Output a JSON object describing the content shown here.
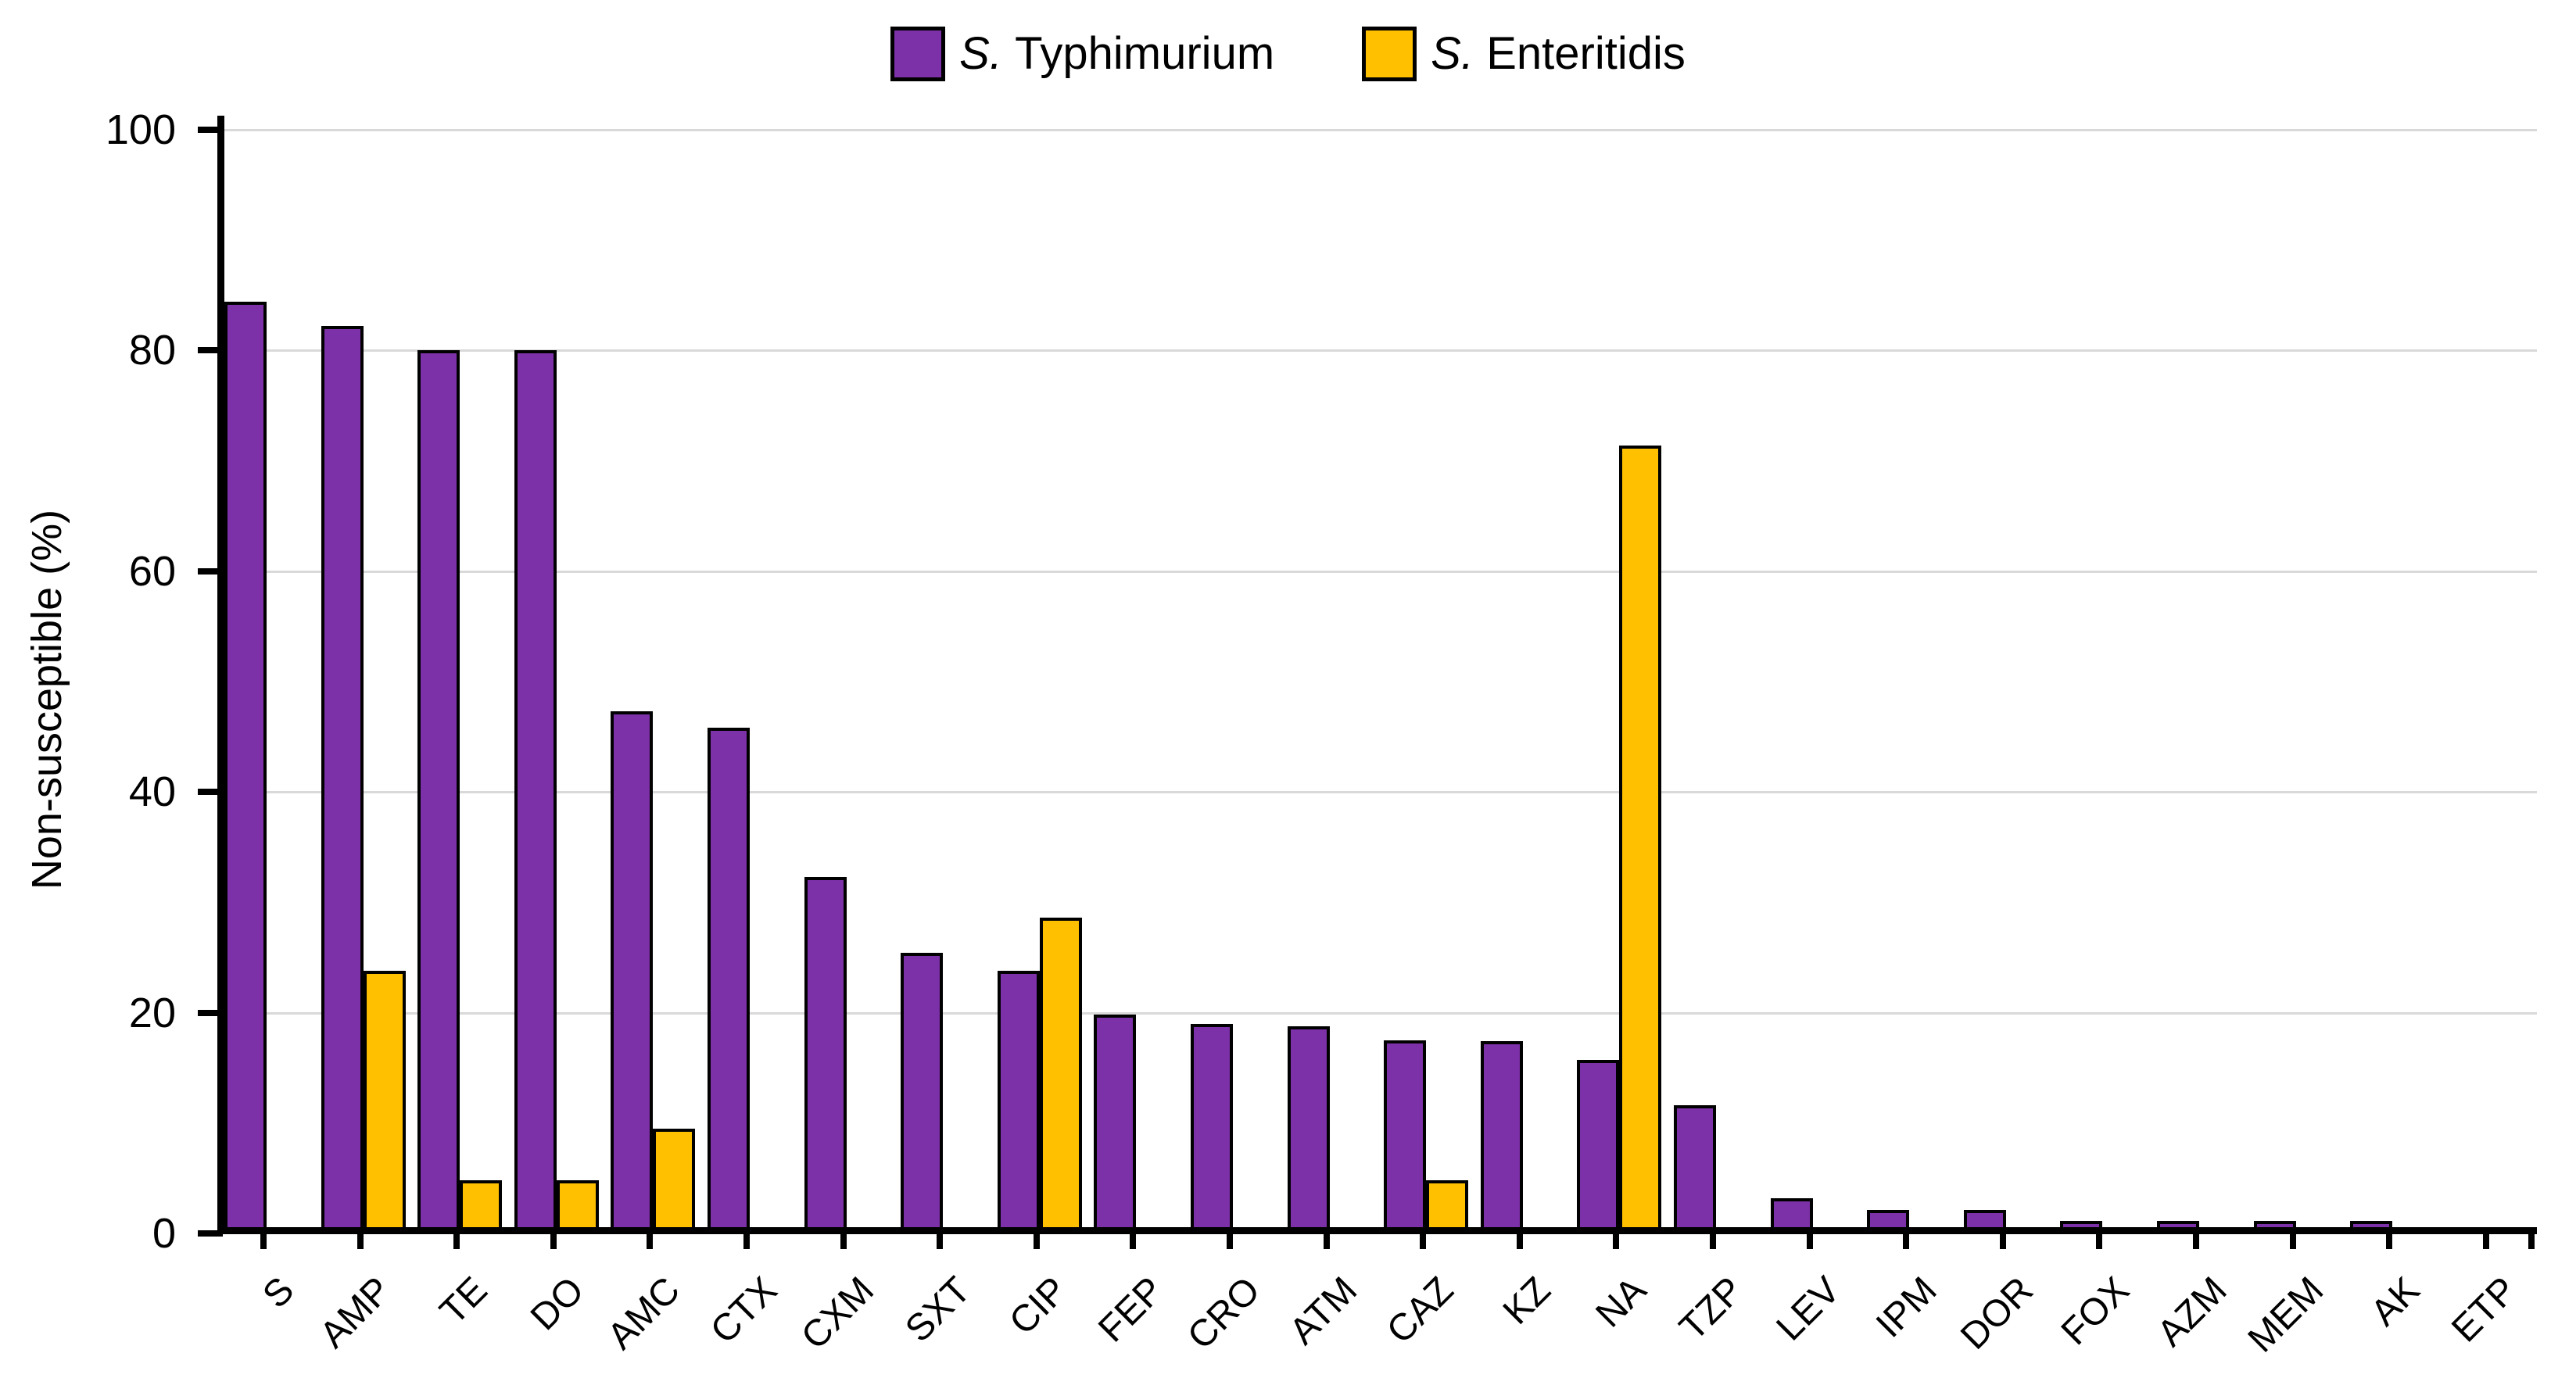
{
  "legend": {
    "items": [
      {
        "genus": "S.",
        "rest": "Typhimurium",
        "color": "#7D31A8"
      },
      {
        "genus": "S.",
        "rest": "Enteritidis",
        "color": "#FFC000"
      }
    ]
  },
  "y_axis_title": "Non-susceptible (%)",
  "chart_data": {
    "type": "bar",
    "title": "",
    "xlabel": "",
    "ylabel": "Non-susceptible (%)",
    "ylim": [
      0,
      100
    ],
    "yticks": [
      0,
      20,
      40,
      60,
      80,
      100
    ],
    "grid": "horizontal",
    "legend_position": "top-center",
    "gridline_color": "#D9D9D9",
    "bar_border_color": "#000000",
    "categories": [
      "S",
      "AMP",
      "TE",
      "DO",
      "AMC",
      "CTX",
      "CXM",
      "SXT",
      "CIP",
      "FEP",
      "CRO",
      "ATM",
      "CAZ",
      "KZ",
      "NA",
      "TZP",
      "LEV",
      "IPM",
      "DOR",
      "FOX",
      "AZM",
      "MEM",
      "AK",
      "ETP"
    ],
    "series": [
      {
        "name": "S. Typhimurium",
        "color": "#7D31A8",
        "values": [
          84.4,
          82.2,
          80,
          80,
          47.3,
          45.8,
          32.3,
          25.4,
          23.8,
          19.8,
          19.0,
          18.8,
          17.5,
          17.4,
          15.7,
          11.6,
          3.2,
          2.1,
          2.1,
          1.1,
          1.1,
          1.1,
          1.1,
          0
        ]
      },
      {
        "name": "S. Enteritidis",
        "color": "#FFC000",
        "values": [
          0,
          23.8,
          4.8,
          4.8,
          9.5,
          0,
          0,
          0,
          28.6,
          0,
          0,
          0,
          4.8,
          0,
          71.4,
          0,
          0,
          0,
          0,
          0,
          0,
          0,
          0,
          0
        ]
      }
    ]
  }
}
